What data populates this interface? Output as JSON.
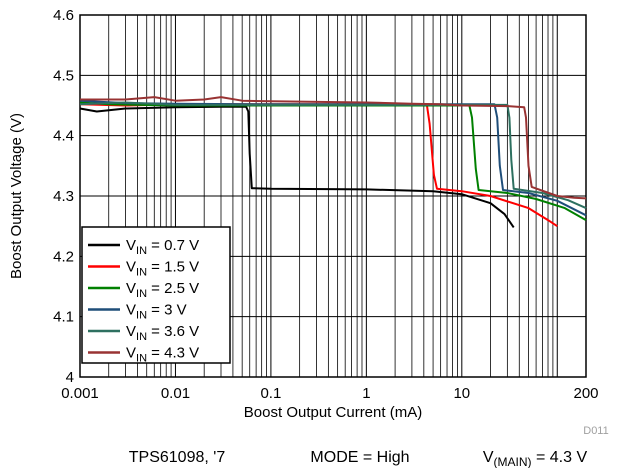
{
  "chart_data": {
    "type": "line",
    "title": "",
    "xlabel": "Boost Output Current (mA)",
    "ylabel": "Boost Output Voltage (V)",
    "xscale": "log",
    "xlim": [
      0.001,
      200
    ],
    "ylim": [
      4.0,
      4.6
    ],
    "x_ticks": [
      "0.001",
      "0.01",
      "0.1",
      "1",
      "10",
      "200"
    ],
    "y_ticks": [
      "4",
      "4.1",
      "4.2",
      "4.3",
      "4.4",
      "4.5",
      "4.6"
    ],
    "grid": true,
    "legend_position": "bottom-left",
    "figure_code": "D011",
    "series": [
      {
        "name": "V_IN = 0.7 V",
        "color": "#000000",
        "legend": {
          "base": "V",
          "sub": "IN",
          "rest": " = 0.7 V"
        },
        "points": [
          [
            0.001,
            4.445
          ],
          [
            0.0015,
            4.44
          ],
          [
            0.003,
            4.445
          ],
          [
            0.01,
            4.447
          ],
          [
            0.03,
            4.448
          ],
          [
            0.055,
            4.448
          ],
          [
            0.058,
            4.44
          ],
          [
            0.06,
            4.37
          ],
          [
            0.063,
            4.313
          ],
          [
            0.1,
            4.312
          ],
          [
            1,
            4.311
          ],
          [
            5,
            4.308
          ],
          [
            10,
            4.303
          ],
          [
            20,
            4.288
          ],
          [
            28,
            4.27
          ],
          [
            35,
            4.248
          ]
        ]
      },
      {
        "name": "V_IN = 1.5 V",
        "color": "#ff0000",
        "legend": {
          "base": "V",
          "sub": "IN",
          "rest": " = 1.5 V"
        },
        "points": [
          [
            0.001,
            4.452
          ],
          [
            0.003,
            4.45
          ],
          [
            0.01,
            4.452
          ],
          [
            0.1,
            4.452
          ],
          [
            1,
            4.452
          ],
          [
            4.3,
            4.452
          ],
          [
            4.6,
            4.42
          ],
          [
            5.1,
            4.335
          ],
          [
            5.5,
            4.312
          ],
          [
            10,
            4.308
          ],
          [
            20,
            4.3
          ],
          [
            50,
            4.28
          ],
          [
            80,
            4.26
          ],
          [
            100,
            4.25
          ]
        ]
      },
      {
        "name": "V_IN = 2.5 V",
        "color": "#008000",
        "legend": {
          "base": "V",
          "sub": "IN",
          "rest": " = 2.5 V"
        },
        "points": [
          [
            0.001,
            4.455
          ],
          [
            0.002,
            4.452
          ],
          [
            0.01,
            4.45
          ],
          [
            0.1,
            4.45
          ],
          [
            1,
            4.45
          ],
          [
            12,
            4.45
          ],
          [
            12.8,
            4.43
          ],
          [
            14,
            4.345
          ],
          [
            15,
            4.31
          ],
          [
            30,
            4.305
          ],
          [
            60,
            4.295
          ],
          [
            120,
            4.28
          ],
          [
            200,
            4.26
          ]
        ]
      },
      {
        "name": "V_IN = 3 V",
        "color": "#1f4e79",
        "legend": {
          "base": "V",
          "sub": "IN",
          "rest": " = 3 V"
        },
        "points": [
          [
            0.001,
            4.458
          ],
          [
            0.003,
            4.454
          ],
          [
            0.01,
            4.453
          ],
          [
            0.1,
            4.452
          ],
          [
            1,
            4.452
          ],
          [
            22,
            4.452
          ],
          [
            23.5,
            4.43
          ],
          [
            25,
            4.35
          ],
          [
            27,
            4.31
          ],
          [
            50,
            4.305
          ],
          [
            100,
            4.292
          ],
          [
            200,
            4.268
          ]
        ]
      },
      {
        "name": "V_IN = 3.6 V",
        "color": "#2e7060",
        "legend": {
          "base": "V",
          "sub": "IN",
          "rest": " = 3.6 V"
        },
        "points": [
          [
            0.001,
            4.452
          ],
          [
            0.003,
            4.455
          ],
          [
            0.01,
            4.451
          ],
          [
            0.1,
            4.451
          ],
          [
            1,
            4.451
          ],
          [
            30,
            4.451
          ],
          [
            31.5,
            4.43
          ],
          [
            33,
            4.36
          ],
          [
            35,
            4.312
          ],
          [
            70,
            4.305
          ],
          [
            130,
            4.293
          ],
          [
            200,
            4.28
          ]
        ]
      },
      {
        "name": "V_IN = 4.3 V",
        "color": "#993333",
        "legend": {
          "base": "V",
          "sub": "IN",
          "rest": " = 4.3 V"
        },
        "points": [
          [
            0.001,
            4.46
          ],
          [
            0.003,
            4.46
          ],
          [
            0.006,
            4.464
          ],
          [
            0.01,
            4.458
          ],
          [
            0.02,
            4.46
          ],
          [
            0.03,
            4.464
          ],
          [
            0.05,
            4.458
          ],
          [
            0.1,
            4.457
          ],
          [
            1,
            4.455
          ],
          [
            3,
            4.453
          ],
          [
            6,
            4.452
          ],
          [
            10,
            4.45
          ],
          [
            30,
            4.449
          ],
          [
            45,
            4.447
          ],
          [
            47,
            4.43
          ],
          [
            50,
            4.35
          ],
          [
            54,
            4.315
          ],
          [
            100,
            4.3
          ],
          [
            150,
            4.297
          ],
          [
            200,
            4.296
          ]
        ]
      }
    ]
  },
  "caption": {
    "left": "TPS61098, '7",
    "mid": "MODE = High",
    "right_base": "V",
    "right_sub": "(MAIN)",
    "right_rest": " = 4.3 V"
  }
}
